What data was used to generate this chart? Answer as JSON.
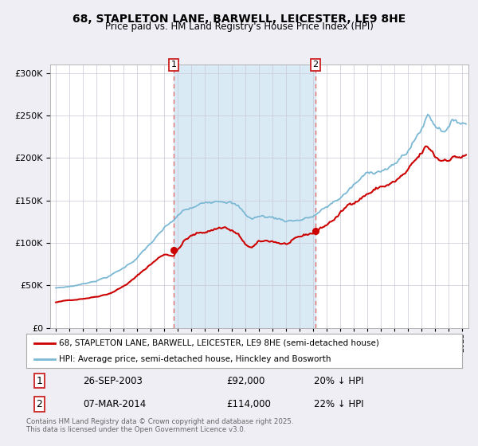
{
  "title": "68, STAPLETON LANE, BARWELL, LEICESTER, LE9 8HE",
  "subtitle": "Price paid vs. HM Land Registry's House Price Index (HPI)",
  "legend_line1": "68, STAPLETON LANE, BARWELL, LEICESTER, LE9 8HE (semi-detached house)",
  "legend_line2": "HPI: Average price, semi-detached house, Hinckley and Bosworth",
  "transaction1_date": "26-SEP-2003",
  "transaction1_price": "£92,000",
  "transaction1_note": "20% ↓ HPI",
  "transaction1_date_num": 2003.74,
  "transaction1_price_val": 92000,
  "transaction2_date": "07-MAR-2014",
  "transaction2_price": "£114,000",
  "transaction2_note": "22% ↓ HPI",
  "transaction2_date_num": 2014.18,
  "transaction2_price_val": 114000,
  "hpi_color": "#7bb8d4",
  "price_color": "#cc0000",
  "shading_color": "#daeaf5",
  "dashed_color": "#e07070",
  "dot_color": "#cc0000",
  "background_color": "#eeeef4",
  "plot_bg_color": "#ffffff",
  "grid_color": "#c8c8d8",
  "ylim": [
    0,
    310000
  ],
  "xlim": [
    1994.6,
    2025.5
  ],
  "footer": "Contains HM Land Registry data © Crown copyright and database right 2025.\nThis data is licensed under the Open Government Licence v3.0."
}
